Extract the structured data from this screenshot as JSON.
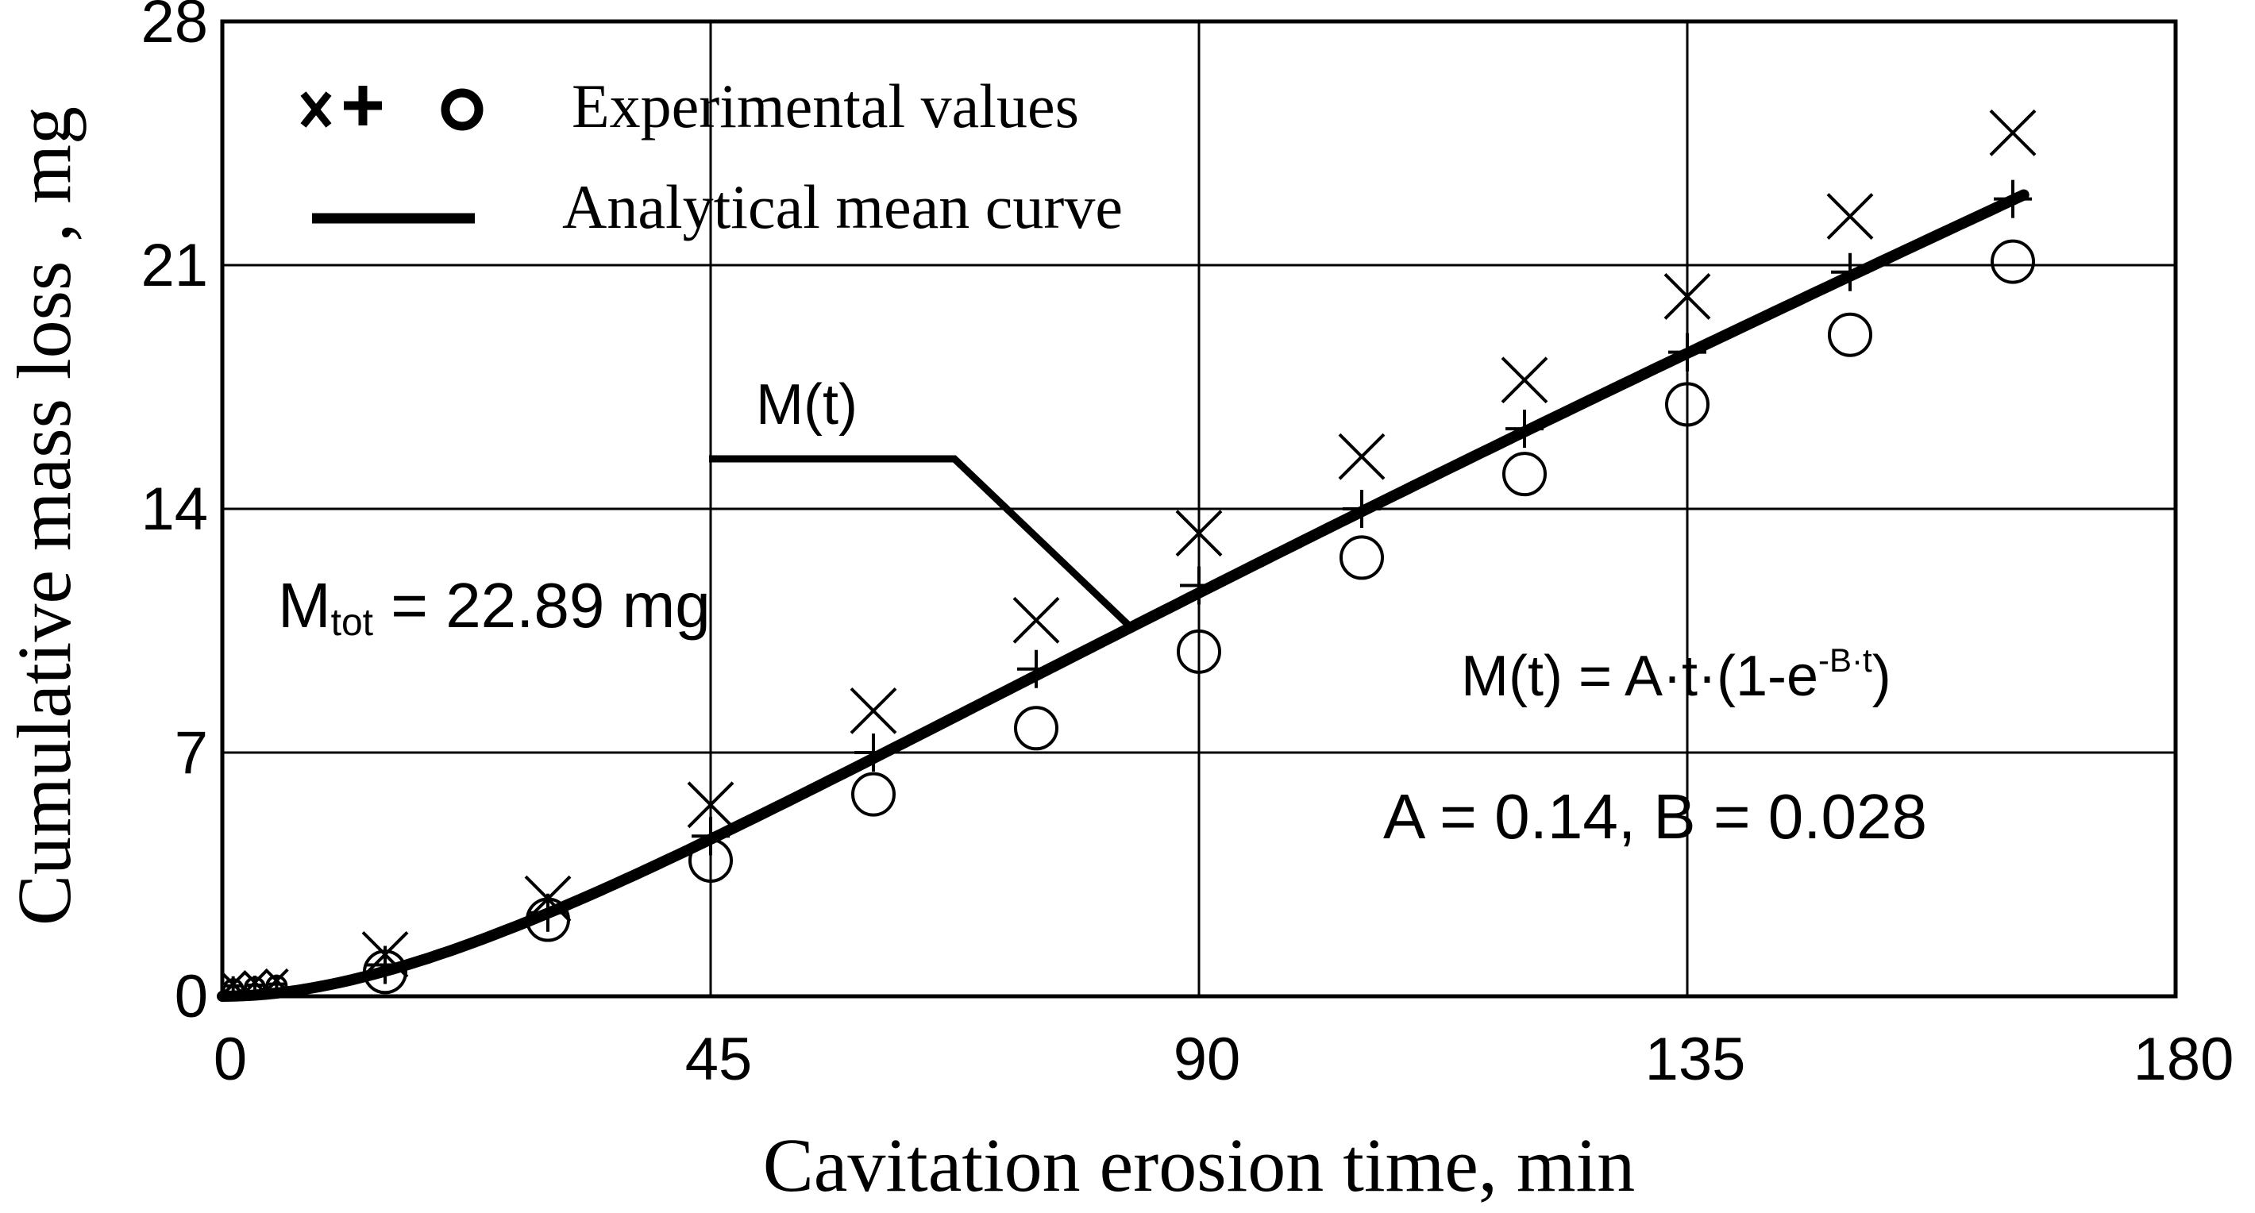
{
  "chart_data": {
    "type": "scatter",
    "xlabel": "Cavitation erosion time, min",
    "ylabel": "Cumulative mass loss , mg",
    "xlim": [
      0,
      180
    ],
    "ylim": [
      0,
      28
    ],
    "x_ticks": [
      "0",
      "45",
      "90",
      "135",
      "180"
    ],
    "y_ticks": [
      "0",
      "7",
      "14",
      "21",
      "28"
    ],
    "grid": true,
    "legend": {
      "placement": "top-left",
      "entries": [
        {
          "symbols": "x + o",
          "label": "Experimental values"
        },
        {
          "symbols": "line",
          "label": "Analytical mean curve"
        }
      ]
    },
    "series": [
      {
        "name": "Experimental values (x)",
        "marker": "x",
        "x": [
          1,
          3,
          5,
          15,
          30,
          45,
          60,
          75,
          90,
          105,
          120,
          135,
          150,
          165
        ],
        "y": [
          0.35,
          0.4,
          0.45,
          1.2,
          2.8,
          5.5,
          8.2,
          10.8,
          13.3,
          15.5,
          17.7,
          20.1,
          22.4,
          24.8
        ]
      },
      {
        "name": "Experimental values (+)",
        "marker": "+",
        "x": [
          1,
          3,
          5,
          15,
          30,
          45,
          60,
          75,
          90,
          105,
          120,
          135,
          150,
          165
        ],
        "y": [
          0.3,
          0.32,
          0.35,
          0.9,
          2.4,
          4.6,
          7.0,
          9.4,
          11.8,
          14.0,
          16.3,
          18.5,
          20.8,
          22.9
        ]
      },
      {
        "name": "Experimental values (o)",
        "marker": "o",
        "x": [
          1,
          3,
          5,
          15,
          30,
          45,
          60,
          75,
          90,
          105,
          120,
          135,
          150,
          165
        ],
        "y": [
          0.2,
          0.25,
          0.3,
          0.7,
          2.2,
          3.9,
          5.8,
          7.7,
          9.9,
          12.6,
          15.0,
          17.0,
          19.0,
          21.1
        ]
      },
      {
        "name": "Analytical mean curve",
        "type": "line",
        "formula": "A*t*(1-exp(-B*t))",
        "A": 0.14,
        "B": 0.028
      }
    ],
    "annotations": {
      "curve_label": "M(t)",
      "mtot_prefix": "M",
      "mtot_subscript": "tot",
      "mtot_value": " = 22.89 mg",
      "formula_left": "M(t) = A·t·(1-e",
      "formula_exponent": "-B·t",
      "formula_right": ")",
      "params": "A = 0.14, B = 0.028"
    }
  }
}
